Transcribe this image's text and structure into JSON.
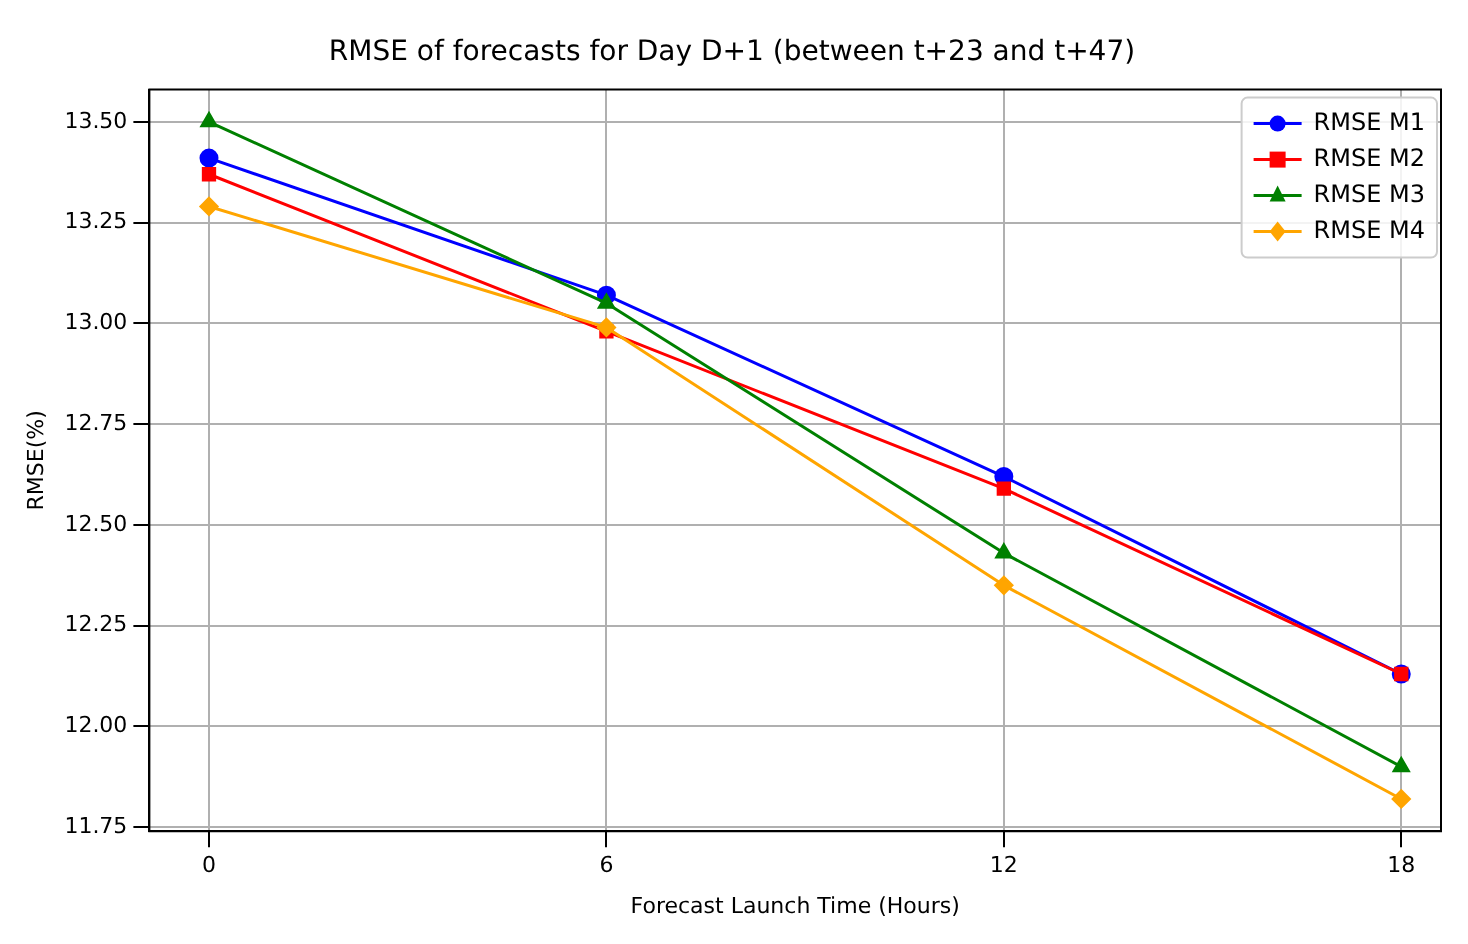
{
  "chart_data": {
    "type": "line",
    "title": "RMSE of forecasts for Day D+1 (between t+23 and t+47)",
    "xlabel": "Forecast Launch Time (Hours)",
    "ylabel": "RMSE(%)",
    "x": [
      0,
      6,
      12,
      18
    ],
    "xlim": [
      -0.9,
      18.6
    ],
    "xticks": [
      0,
      6,
      12,
      18
    ],
    "ylim": [
      11.74,
      13.58
    ],
    "yticks": [
      {
        "value": 11.75,
        "label": "11.75"
      },
      {
        "value": 12,
        "label": "12.00"
      },
      {
        "value": 12.25,
        "label": "12.25"
      },
      {
        "value": 12.5,
        "label": "12.50"
      },
      {
        "value": 12.75,
        "label": "12.75"
      },
      {
        "value": 13,
        "label": "13.00"
      },
      {
        "value": 13.25,
        "label": "13.25"
      },
      {
        "value": 13.5,
        "label": "13.50"
      }
    ],
    "grid": true,
    "legend": "top right",
    "line_style": "solid",
    "series": [
      {
        "name": "RMSE M1",
        "color": "#0000ff",
        "marker": "circle",
        "values": [
          13.41,
          13.07,
          12.62,
          12.13
        ]
      },
      {
        "name": "RMSE M2",
        "color": "#ff0000",
        "marker": "square",
        "values": [
          13.37,
          12.98,
          12.59,
          12.13
        ]
      },
      {
        "name": "RMSE M3",
        "color": "#008000",
        "marker": "triangle",
        "values": [
          13.5,
          13.05,
          12.43,
          11.9
        ]
      },
      {
        "name": "RMSE M4",
        "color": "#ffa500",
        "marker": "diamond",
        "values": [
          13.29,
          12.99,
          12.35,
          11.82
        ]
      }
    ]
  }
}
